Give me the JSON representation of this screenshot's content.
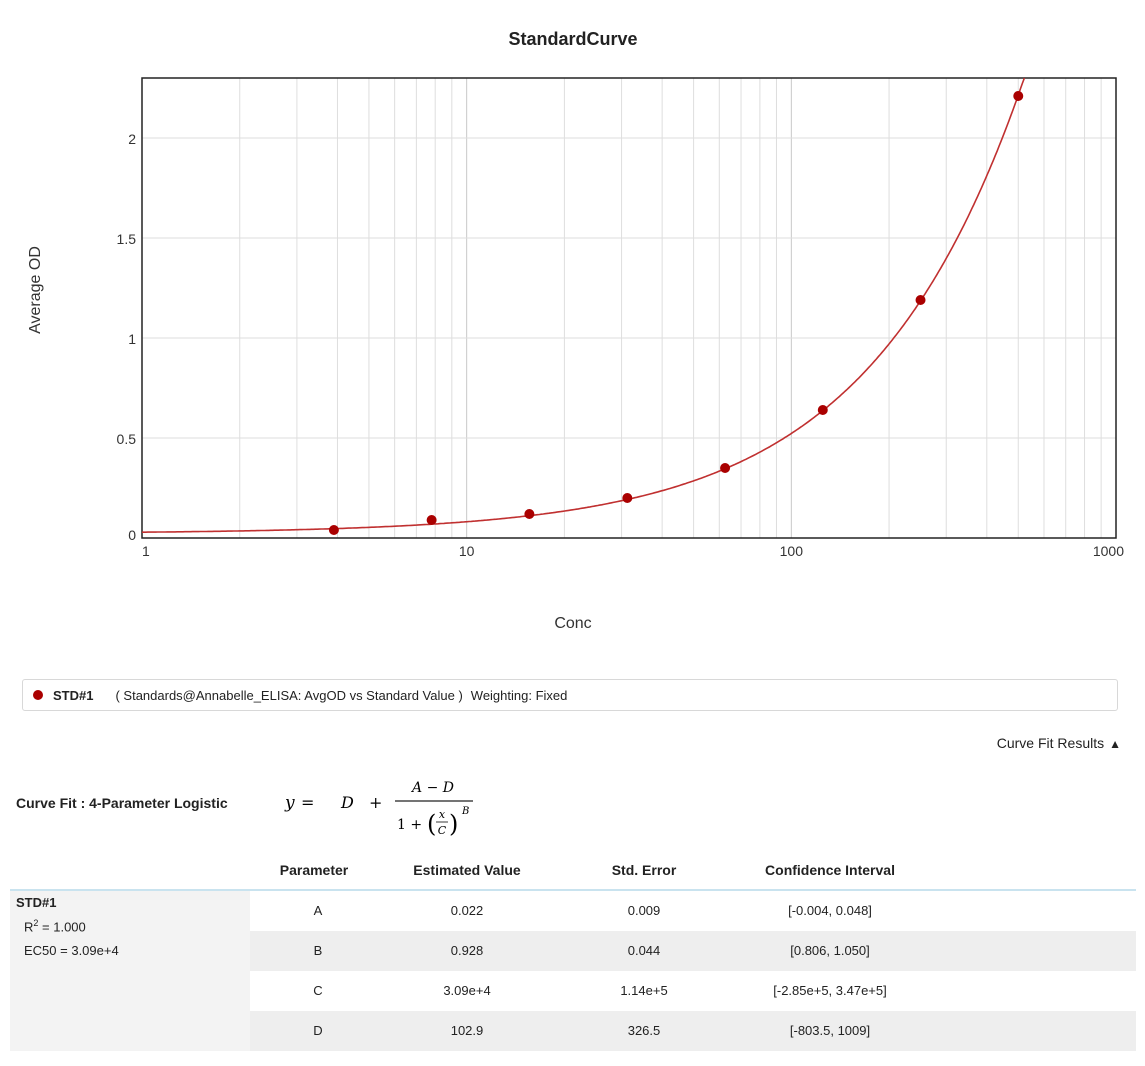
{
  "chart_data": {
    "type": "scatter",
    "title": "StandardCurve",
    "xlabel": "Conc",
    "ylabel": "Average OD",
    "x_scale": "log",
    "xlim": [
      1,
      1000
    ],
    "ylim": [
      0,
      2.3
    ],
    "x_ticks": [
      "1",
      "10",
      "100",
      "1000"
    ],
    "y_ticks": [
      "0",
      "0.5",
      "1",
      "1.5",
      "2"
    ],
    "grid": true,
    "series": [
      {
        "name": "STD#1",
        "color": "#aa0000",
        "x": [
          3.9,
          7.8,
          15.6,
          31.25,
          62.5,
          125,
          250,
          500
        ],
        "y": [
          0.04,
          0.09,
          0.12,
          0.2,
          0.35,
          0.64,
          1.19,
          2.21
        ],
        "fit": {
          "model": "4pl",
          "A": 0.022,
          "B": 0.928,
          "C": 30900,
          "D": 102.9
        }
      }
    ]
  },
  "legend": {
    "name": "STD#1",
    "description": "( Standards@Annabelle_ELISA: AvgOD vs Standard Value )",
    "weighting": "Weighting: Fixed"
  },
  "curve_fit_toggle": "Curve Fit Results",
  "curve_fit_label": "Curve Fit : 4-Parameter Logistic",
  "formula": {
    "y": "y",
    "eq": "=",
    "d": "D",
    "plus": "+",
    "numer": "A − D",
    "one_plus": "1 +",
    "x": "x",
    "c": "C",
    "b": "B"
  },
  "results": {
    "headers": [
      "Parameter",
      "Estimated Value",
      "Std. Error",
      "Confidence Interval"
    ],
    "series_name": "STD#1",
    "r2_label": "R",
    "r2_sup": "2",
    "r2_value": " = 1.000",
    "ec50": "EC50 = 3.09e+4",
    "rows": [
      [
        "A",
        "0.022",
        "0.009",
        "[-0.004, 0.048]"
      ],
      [
        "B",
        "0.928",
        "0.044",
        "[0.806, 1.050]"
      ],
      [
        "C",
        "3.09e+4",
        "1.14e+5",
        "[-2.85e+5, 3.47e+5]"
      ],
      [
        "D",
        "102.9",
        "326.5",
        "[-803.5, 1009]"
      ]
    ]
  }
}
